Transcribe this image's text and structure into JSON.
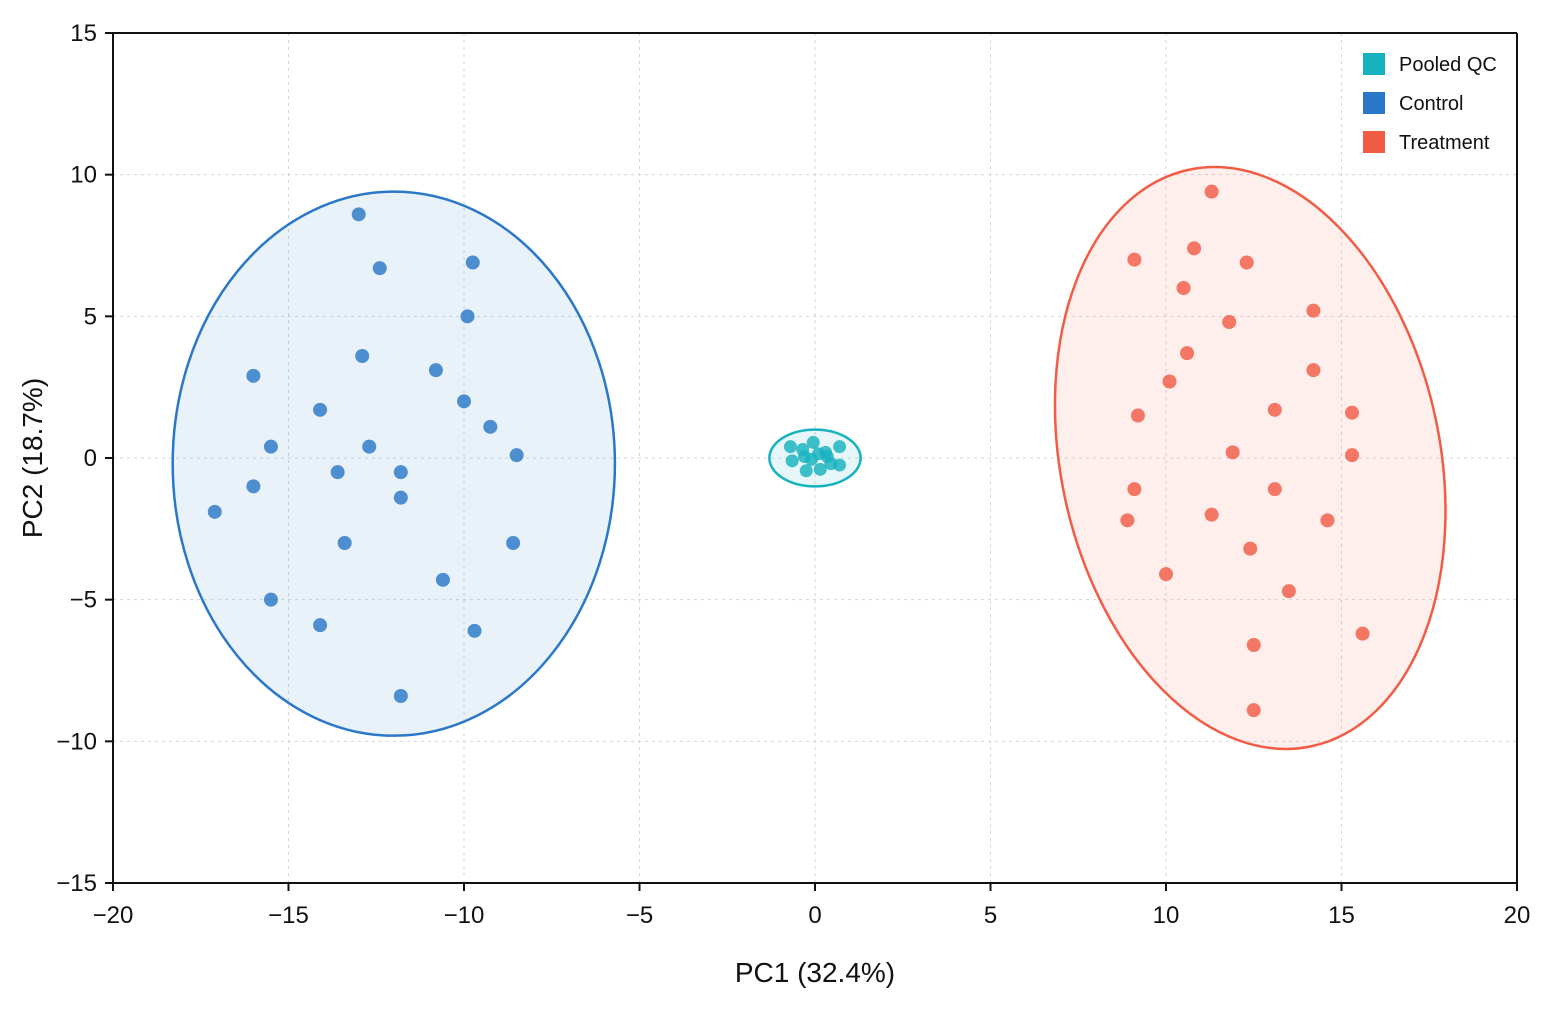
{
  "chart_data": {
    "type": "scatter",
    "title": "",
    "xlabel": "PC1 (32.4%)",
    "ylabel": "PC2 (18.7%)",
    "xlim": [
      -20,
      20
    ],
    "ylim": [
      -15,
      15
    ],
    "x_ticks": [
      -20,
      -15,
      -10,
      -5,
      0,
      5,
      10,
      15,
      20
    ],
    "y_ticks": [
      -15,
      -10,
      -5,
      0,
      5,
      10,
      15
    ],
    "x_tick_labels": [
      "−20",
      "−15",
      "−10",
      "−5",
      "0",
      "5",
      "10",
      "15",
      "20"
    ],
    "y_tick_labels": [
      "−15",
      "−10",
      "−5",
      "0",
      "5",
      "10",
      "15"
    ],
    "grid": true,
    "legend_position": "top-right",
    "series": [
      {
        "name": "Pooled QC",
        "color": "#17b2c0",
        "ellipse": {
          "cx": 0,
          "cy": 0,
          "rx": 1.3,
          "ry": 1.0,
          "angle": 0
        },
        "x": [
          -0.7,
          -0.35,
          -0.05,
          0.3,
          0.7,
          -0.65,
          -0.25,
          0.15,
          0.45,
          0.7,
          -0.3,
          0.1,
          -0.1,
          0.35
        ],
        "y": [
          0.4,
          0.3,
          0.55,
          0.2,
          0.4,
          -0.1,
          -0.45,
          -0.4,
          -0.2,
          -0.25,
          0.05,
          0.15,
          -0.05,
          0.05
        ]
      },
      {
        "name": "Control",
        "color": "#2b78c8",
        "ellipse": {
          "cx": -12.0,
          "cy": -0.2,
          "rx": 6.3,
          "ry": 9.6,
          "angle": 0
        },
        "x": [
          -13.0,
          -12.4,
          -9.75,
          -9.9,
          -16.0,
          -12.9,
          -10.8,
          -14.1,
          -10.0,
          -9.25,
          -15.5,
          -12.7,
          -8.5,
          -16.0,
          -13.6,
          -11.8,
          -17.1,
          -11.8,
          -13.4,
          -8.6,
          -10.6,
          -15.5,
          -14.1,
          -9.7,
          -11.8
        ],
        "y": [
          8.6,
          6.7,
          6.9,
          5.0,
          2.9,
          3.6,
          3.1,
          1.7,
          2.0,
          1.1,
          0.4,
          0.4,
          0.1,
          -1.0,
          -0.5,
          -0.5,
          -1.9,
          -1.4,
          -3.0,
          -3.0,
          -4.3,
          -5.0,
          -5.9,
          -6.1,
          -8.4
        ]
      },
      {
        "name": "Treatment",
        "color": "#f25c45",
        "ellipse": {
          "cx": 12.4,
          "cy": 0.0,
          "rx": 5.4,
          "ry": 10.4,
          "angle": -12
        },
        "x": [
          11.3,
          9.1,
          10.8,
          12.3,
          10.5,
          11.8,
          14.2,
          10.6,
          14.2,
          10.1,
          13.1,
          15.3,
          9.2,
          11.9,
          15.3,
          9.1,
          13.1,
          11.3,
          8.9,
          14.6,
          12.4,
          10.0,
          13.5,
          15.6,
          12.5,
          12.5
        ],
        "y": [
          9.4,
          7.0,
          7.4,
          6.9,
          6.0,
          4.8,
          5.2,
          3.7,
          3.1,
          2.7,
          1.7,
          1.6,
          1.5,
          0.2,
          0.1,
          -1.1,
          -1.1,
          -2.0,
          -2.2,
          -2.2,
          -3.2,
          -4.1,
          -4.7,
          -6.2,
          -6.6,
          -8.9
        ]
      }
    ]
  }
}
